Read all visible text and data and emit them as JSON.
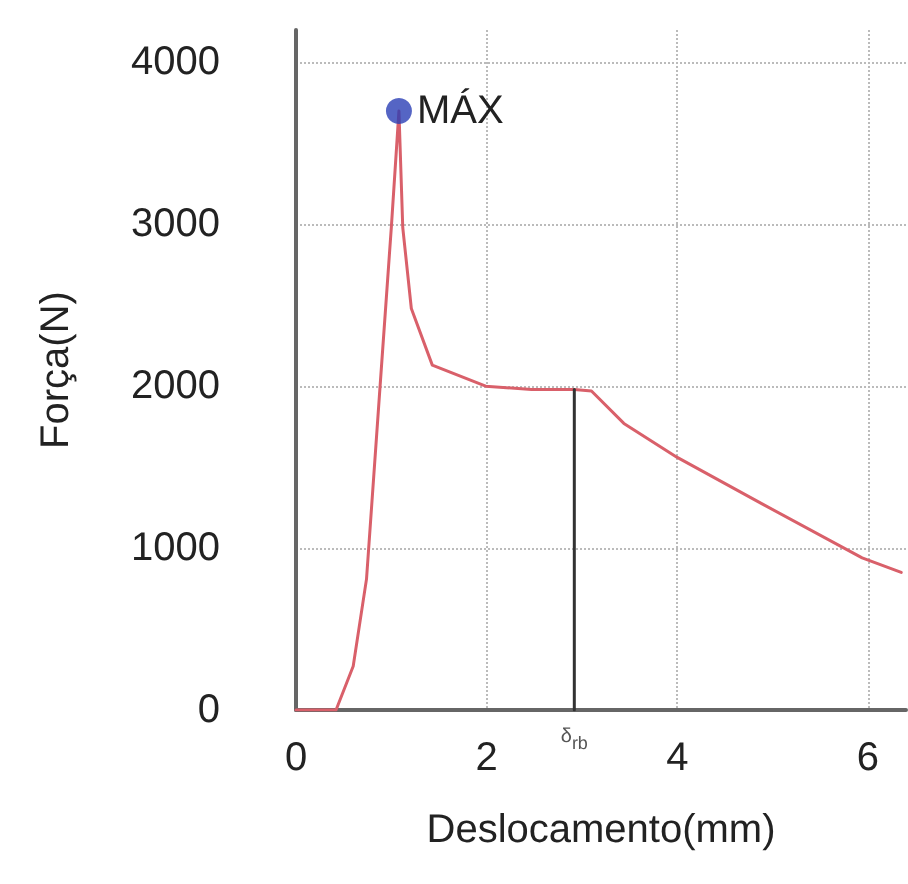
{
  "chart_data": {
    "type": "line",
    "xlabel": "Deslocamento(mm)",
    "ylabel": "Força(N)",
    "xlim": [
      0,
      6.4
    ],
    "ylim": [
      0,
      4200
    ],
    "xticks": [
      0,
      2,
      4,
      6
    ],
    "yticks": [
      0,
      1000,
      2000,
      3000,
      4000
    ],
    "grid": true,
    "marker": "none",
    "line_style": "solid",
    "series": [
      {
        "color": "#d9606a",
        "x": [
          0,
          0.42,
          0.6,
          0.74,
          0.875,
          1.0,
          1.08,
          1.12,
          1.21,
          1.43,
          1.99,
          2.47,
          2.92,
          3.1,
          3.44,
          4.0,
          4.9,
          5.94,
          6.35
        ],
        "values": [
          0,
          0,
          270,
          810,
          1940,
          2980,
          3700,
          2980,
          2480,
          2130,
          2000,
          1980,
          1980,
          1970,
          1770,
          1560,
          1270,
          940,
          850
        ]
      },
      {
        "color": "#333333",
        "x": [
          2.92,
          2.92
        ],
        "values": [
          0,
          1980
        ]
      },
      {
        "type": "scatter",
        "marker": "circle",
        "color": "#2a3fb5",
        "x": [
          1.08
        ],
        "values": [
          3700
        ]
      }
    ],
    "annotations": [
      {
        "text": "MÁX",
        "x": 1.08,
        "y": 3700
      },
      {
        "text": "δ$_{rb}$",
        "x": 2.92,
        "y": 0
      }
    ]
  }
}
